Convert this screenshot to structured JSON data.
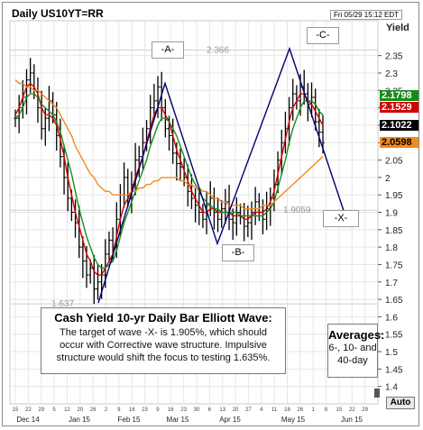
{
  "title": "Daily US10YT=RR",
  "datestamp": "Fri 05/29 15:12 EDT",
  "yield_label": "Yield",
  "price_tags": [
    {
      "value": "2.1798",
      "bg": "#1a8a1a",
      "fg": "#ffffff"
    },
    {
      "value": "2.1529",
      "bg": "#d40000",
      "fg": "#ffffff"
    },
    {
      "value": "2.1022",
      "bg": "#000000",
      "fg": "#ffffff"
    },
    {
      "value": "2.0598",
      "bg": "#f28a1e",
      "fg": "#000000"
    }
  ],
  "waves": {
    "A": "-A-",
    "B": "-B-",
    "C": "-C-",
    "X": "-X-"
  },
  "level_labels": {
    "high": "2.366",
    "low": "1.637",
    "target": "1.9059"
  },
  "note": {
    "title": "Cash Yield 10-yr Daily Bar Elliott Wave:",
    "body": "The target of wave -X- is 1.905%, which should occur with Corrective wave structure. Impulsive structure would shift the focus to testing 1.635%."
  },
  "averages": {
    "title": "Averages:",
    "body": "6-, 10- and 40-day"
  },
  "auto_label": "Auto",
  "colors": {
    "bars": "#000000",
    "ma6": "#d40000",
    "ma10": "#1a8a1a",
    "ma40": "#f28a1e",
    "wave": "#000070",
    "grid": "#e6e6e6"
  },
  "chart_data": {
    "type": "ohlc-bar",
    "ylabel": "Yield",
    "ylim": [
      1.35,
      2.45
    ],
    "y_ticks": [
      "1.4",
      "1.45",
      "1.5",
      "1.55",
      "1.6",
      "1.65",
      "1.7",
      "1.75",
      "1.8",
      "1.85",
      "1.9",
      "1.95",
      "2",
      "2.05",
      "2.1",
      "2.15",
      "2.2",
      "2.25",
      "2.3",
      "2.35"
    ],
    "x_day_ticks": [
      "15",
      "22",
      "29",
      "5",
      "12",
      "20",
      "26",
      "2",
      "9",
      "16",
      "23",
      "9",
      "16",
      "23",
      "30",
      "6",
      "13",
      "20",
      "27",
      "4",
      "11",
      "18",
      "26",
      "1",
      "8",
      "15",
      "22",
      "29"
    ],
    "x_month_labels": [
      "Dec 14",
      "Jan 15",
      "Feb 15",
      "Mar 15",
      "Apr 15",
      "May 15",
      "Jun 15"
    ],
    "bars_close": [
      2.17,
      2.2,
      2.23,
      2.28,
      2.3,
      2.25,
      2.2,
      2.14,
      2.17,
      2.22,
      2.18,
      2.12,
      2.06,
      2.0,
      1.94,
      1.9,
      1.87,
      1.8,
      1.76,
      1.72,
      1.74,
      1.68,
      1.7,
      1.72,
      1.78,
      1.82,
      1.8,
      1.88,
      1.95,
      2.0,
      1.94,
      1.98,
      2.05,
      2.06,
      2.1,
      2.14,
      2.2,
      2.22,
      2.26,
      2.2,
      2.14,
      2.12,
      2.07,
      2.04,
      2.03,
      2.0,
      1.96,
      1.94,
      1.92,
      1.9,
      1.88,
      1.92,
      1.94,
      1.9,
      1.88,
      1.91,
      1.93,
      1.88,
      1.87,
      1.9,
      1.89,
      1.86,
      1.87,
      1.9,
      1.93,
      1.9,
      1.88,
      1.91,
      1.94,
      1.98,
      2.05,
      2.1,
      2.14,
      2.2,
      2.24,
      2.22,
      2.26,
      2.24,
      2.21,
      2.23,
      2.16,
      2.13,
      2.1
    ],
    "ma_series": [
      {
        "name": "6-day",
        "values": [
          2.18,
          2.2,
          2.23,
          2.26,
          2.27,
          2.26,
          2.24,
          2.2,
          2.18,
          2.18,
          2.17,
          2.15,
          2.11,
          2.06,
          2.0,
          1.95,
          1.9,
          1.86,
          1.82,
          1.78,
          1.76,
          1.73,
          1.72,
          1.72,
          1.74,
          1.76,
          1.78,
          1.83,
          1.88,
          1.92,
          1.94,
          1.96,
          2.0,
          2.03,
          2.06,
          2.1,
          2.14,
          2.18,
          2.2,
          2.2,
          2.18,
          2.16,
          2.12,
          2.08,
          2.05,
          2.02,
          1.99,
          1.96,
          1.94,
          1.92,
          1.9,
          1.9,
          1.91,
          1.91,
          1.9,
          1.9,
          1.9,
          1.9,
          1.89,
          1.89,
          1.89,
          1.88,
          1.88,
          1.89,
          1.9,
          1.9,
          1.9,
          1.91,
          1.93,
          1.96,
          2.01,
          2.06,
          2.11,
          2.16,
          2.2,
          2.22,
          2.24,
          2.24,
          2.22,
          2.21,
          2.19,
          2.17,
          2.15
        ]
      },
      {
        "name": "10-day",
        "values": [
          2.17,
          2.18,
          2.2,
          2.23,
          2.24,
          2.24,
          2.23,
          2.21,
          2.2,
          2.19,
          2.18,
          2.16,
          2.13,
          2.09,
          2.05,
          2.01,
          1.96,
          1.91,
          1.87,
          1.83,
          1.8,
          1.77,
          1.75,
          1.74,
          1.74,
          1.75,
          1.76,
          1.79,
          1.83,
          1.87,
          1.9,
          1.93,
          1.96,
          1.99,
          2.02,
          2.05,
          2.09,
          2.12,
          2.15,
          2.17,
          2.17,
          2.16,
          2.14,
          2.12,
          2.09,
          2.06,
          2.03,
          2.0,
          1.98,
          1.96,
          1.94,
          1.93,
          1.92,
          1.91,
          1.91,
          1.9,
          1.9,
          1.9,
          1.9,
          1.9,
          1.89,
          1.89,
          1.89,
          1.89,
          1.89,
          1.89,
          1.89,
          1.9,
          1.91,
          1.93,
          1.97,
          2.01,
          2.05,
          2.1,
          2.14,
          2.17,
          2.2,
          2.22,
          2.22,
          2.22,
          2.21,
          2.19,
          2.18
        ]
      },
      {
        "name": "40-day",
        "values": [
          2.28,
          2.27,
          2.27,
          2.26,
          2.26,
          2.25,
          2.25,
          2.24,
          2.23,
          2.22,
          2.21,
          2.2,
          2.18,
          2.16,
          2.14,
          2.12,
          2.09,
          2.07,
          2.05,
          2.03,
          2.01,
          2.0,
          1.98,
          1.97,
          1.96,
          1.96,
          1.95,
          1.95,
          1.95,
          1.95,
          1.95,
          1.96,
          1.96,
          1.97,
          1.97,
          1.98,
          1.98,
          1.99,
          1.99,
          2.0,
          2.0,
          2.0,
          2.0,
          2.0,
          1.99,
          1.99,
          1.98,
          1.98,
          1.97,
          1.97,
          1.96,
          1.96,
          1.95,
          1.94,
          1.94,
          1.93,
          1.93,
          1.92,
          1.92,
          1.92,
          1.92,
          1.91,
          1.91,
          1.91,
          1.91,
          1.91,
          1.92,
          1.92,
          1.92,
          1.93,
          1.94,
          1.95,
          1.96,
          1.97,
          1.98,
          1.99,
          2.0,
          2.01,
          2.02,
          2.03,
          2.04,
          2.05,
          2.06
        ]
      }
    ],
    "wave_path": [
      {
        "label": "start",
        "y": 1.64
      },
      {
        "label": "A",
        "y": 2.27
      },
      {
        "label": "B",
        "y": 1.81
      },
      {
        "label": "C",
        "y": 2.37
      },
      {
        "label": "X",
        "y": 1.905
      }
    ]
  }
}
